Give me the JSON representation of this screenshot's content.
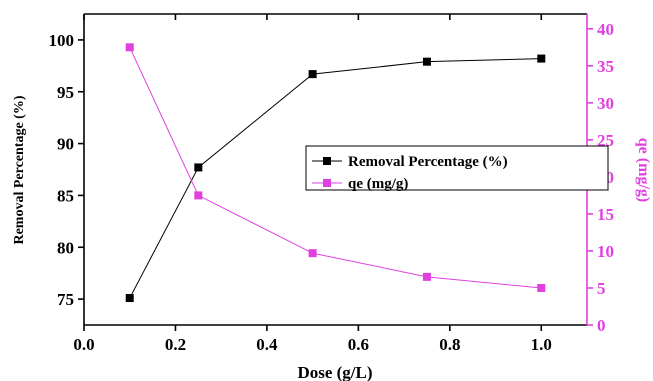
{
  "chart_data": {
    "type": "line",
    "x": [
      0.1,
      0.25,
      0.5,
      0.75,
      1.0
    ],
    "xlabel": "Dose (g/L)",
    "xlim": [
      0.0,
      1.1
    ],
    "xticks": [
      "0.0",
      "0.2",
      "0.4",
      "0.6",
      "0.8",
      "1.0"
    ],
    "ylabel_left": "Removal Percentage (%)",
    "ylim_left": [
      72.5,
      102.5
    ],
    "yticks_left": [
      "75",
      "80",
      "85",
      "90",
      "95",
      "100"
    ],
    "ylabel_right": "qe (mg/g)",
    "ylim_right": [
      0,
      42
    ],
    "yticks_right": [
      "0",
      "5",
      "10",
      "15",
      "20",
      "25",
      "30",
      "35",
      "40"
    ],
    "grid": false,
    "legend_position": "center-right",
    "series": [
      {
        "name": "Removal Percentage (%)",
        "axis": "left",
        "color": "#000000",
        "marker": "square",
        "values": [
          75.1,
          87.7,
          96.7,
          97.9,
          98.2
        ]
      },
      {
        "name": "qe  (mg/g)",
        "axis": "right",
        "color": "#e040e0",
        "marker": "square",
        "values": [
          37.5,
          17.5,
          9.7,
          6.5,
          5.0
        ]
      }
    ]
  }
}
